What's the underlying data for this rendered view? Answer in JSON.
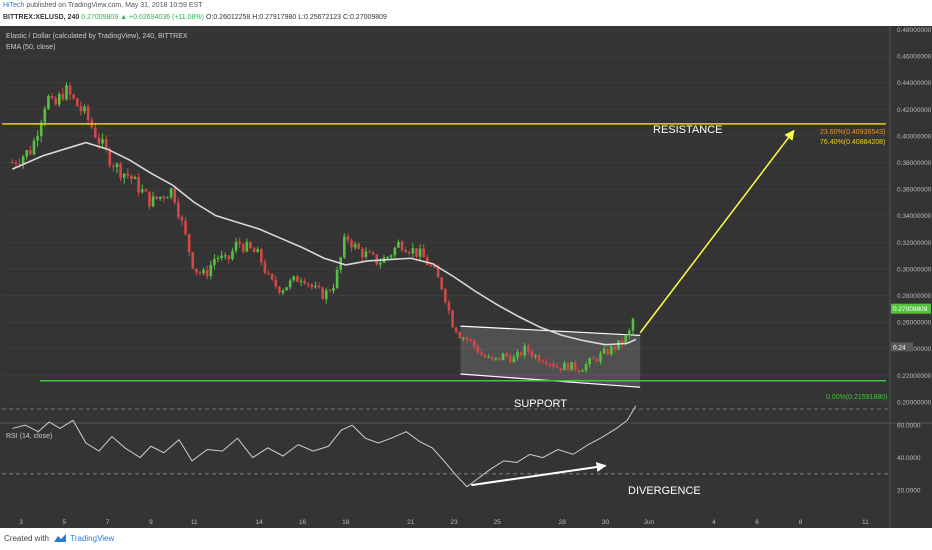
{
  "header": {
    "author": "HiTech",
    "published": "published on TradingView.com, May 31, 2018 10:59 EST",
    "symbol": "BITTREX:XELUSD, 240",
    "change": "0.27009809 ▲ +0.02694036 (+11.08%)",
    "ohlc": "O:0.26012258 H:0.27917980 L:0.25672123 C:0.27009809"
  },
  "legend": {
    "title": "Elastic / Dollar (calculated by TradingView), 240, BITTREX",
    "ema": "EMA (50, close)",
    "rsi": "RSI (14, close)"
  },
  "labels": {
    "resistance": "RESISTANCE",
    "support": "SUPPORT",
    "divergence": "DIVERGENCE",
    "fib_236": "23.60%(0.40936543)",
    "fib_764": "76.40%(0.40884208)",
    "fib_0": "0.00%(0.21591880)",
    "price_tag": "0.27009809",
    "ema_tag": "0.24"
  },
  "footer": {
    "created": "Created with",
    "brand": "TradingView"
  },
  "colors": {
    "background": "#343434",
    "candle_up": "#56c13f",
    "candle_down": "#d24848",
    "ema": "#d9d9d9",
    "resistance": "#e8d21a",
    "support": "#3fc83a",
    "arrow": "#ffff44",
    "rsi": "#cfcfcf"
  },
  "chart_data": [
    {
      "type": "candlestick",
      "title": "Elastic / Dollar (calculated by TradingView), 240, BITTREX",
      "ylim": [
        0.19,
        0.49
      ],
      "yticks": [
        "0.48000000",
        "0.46000000",
        "0.44000000",
        "0.42000000",
        "0.40000000",
        "0.38000000",
        "0.36000000",
        "0.34000000",
        "0.32000000",
        "0.30000000",
        "0.28000000",
        "0.26000000",
        "0.24000000",
        "0.22000000",
        "0.20000000"
      ],
      "xticks": [
        "3",
        "5",
        "7",
        "9",
        "11",
        "14",
        "16",
        "18",
        "21",
        "23",
        "25",
        "28",
        "30",
        "Jun",
        "4",
        "6",
        "8",
        "11"
      ],
      "close_path": [
        {
          "d": 2.6,
          "v": 0.38
        },
        {
          "d": 3.5,
          "v": 0.39
        },
        {
          "d": 4.2,
          "v": 0.43
        },
        {
          "d": 4.5,
          "v": 0.42
        },
        {
          "d": 5.0,
          "v": 0.435
        },
        {
          "d": 5.5,
          "v": 0.425
        },
        {
          "d": 6.0,
          "v": 0.415
        },
        {
          "d": 6.5,
          "v": 0.4
        },
        {
          "d": 7.0,
          "v": 0.385
        },
        {
          "d": 7.5,
          "v": 0.375
        },
        {
          "d": 8.0,
          "v": 0.37
        },
        {
          "d": 8.5,
          "v": 0.36
        },
        {
          "d": 9.0,
          "v": 0.35
        },
        {
          "d": 9.5,
          "v": 0.355
        },
        {
          "d": 10.0,
          "v": 0.36
        },
        {
          "d": 10.5,
          "v": 0.33
        },
        {
          "d": 11.0,
          "v": 0.3
        },
        {
          "d": 11.5,
          "v": 0.295
        },
        {
          "d": 12.0,
          "v": 0.31
        },
        {
          "d": 12.5,
          "v": 0.305
        },
        {
          "d": 13.0,
          "v": 0.32
        },
        {
          "d": 13.5,
          "v": 0.315
        },
        {
          "d": 14.0,
          "v": 0.31
        },
        {
          "d": 14.5,
          "v": 0.29
        },
        {
          "d": 15.0,
          "v": 0.285
        },
        {
          "d": 15.5,
          "v": 0.29
        },
        {
          "d": 16.0,
          "v": 0.295
        },
        {
          "d": 16.5,
          "v": 0.285
        },
        {
          "d": 17.0,
          "v": 0.28
        },
        {
          "d": 17.5,
          "v": 0.29
        },
        {
          "d": 17.8,
          "v": 0.31
        },
        {
          "d": 18.0,
          "v": 0.325
        },
        {
          "d": 18.5,
          "v": 0.315
        },
        {
          "d": 19.0,
          "v": 0.31
        },
        {
          "d": 19.5,
          "v": 0.305
        },
        {
          "d": 20.0,
          "v": 0.31
        },
        {
          "d": 20.5,
          "v": 0.32
        },
        {
          "d": 21.0,
          "v": 0.315
        },
        {
          "d": 21.5,
          "v": 0.31
        },
        {
          "d": 22.0,
          "v": 0.3
        },
        {
          "d": 22.5,
          "v": 0.285
        },
        {
          "d": 22.9,
          "v": 0.26
        },
        {
          "d": 23.3,
          "v": 0.25
        },
        {
          "d": 23.8,
          "v": 0.245
        },
        {
          "d": 24.3,
          "v": 0.235
        },
        {
          "d": 24.8,
          "v": 0.23
        },
        {
          "d": 25.3,
          "v": 0.235
        },
        {
          "d": 25.8,
          "v": 0.232
        },
        {
          "d": 26.3,
          "v": 0.24
        },
        {
          "d": 26.8,
          "v": 0.234
        },
        {
          "d": 27.3,
          "v": 0.232
        },
        {
          "d": 27.8,
          "v": 0.226
        },
        {
          "d": 28.3,
          "v": 0.227
        },
        {
          "d": 28.8,
          "v": 0.225
        },
        {
          "d": 29.3,
          "v": 0.23
        },
        {
          "d": 29.8,
          "v": 0.235
        },
        {
          "d": 30.3,
          "v": 0.24
        },
        {
          "d": 30.8,
          "v": 0.245
        },
        {
          "d": 31.1,
          "v": 0.252
        },
        {
          "d": 31.4,
          "v": 0.27
        }
      ],
      "ema_50": [
        {
          "d": 2.6,
          "v": 0.375
        },
        {
          "d": 4.0,
          "v": 0.385
        },
        {
          "d": 5.0,
          "v": 0.39
        },
        {
          "d": 6.0,
          "v": 0.395
        },
        {
          "d": 7.0,
          "v": 0.39
        },
        {
          "d": 8.0,
          "v": 0.382
        },
        {
          "d": 9.0,
          "v": 0.372
        },
        {
          "d": 10.0,
          "v": 0.363
        },
        {
          "d": 11.0,
          "v": 0.35
        },
        {
          "d": 12.0,
          "v": 0.34
        },
        {
          "d": 13.0,
          "v": 0.335
        },
        {
          "d": 14.0,
          "v": 0.33
        },
        {
          "d": 15.0,
          "v": 0.323
        },
        {
          "d": 16.0,
          "v": 0.316
        },
        {
          "d": 17.0,
          "v": 0.308
        },
        {
          "d": 18.0,
          "v": 0.303
        },
        {
          "d": 19.0,
          "v": 0.306
        },
        {
          "d": 20.0,
          "v": 0.307
        },
        {
          "d": 21.0,
          "v": 0.308
        },
        {
          "d": 22.0,
          "v": 0.304
        },
        {
          "d": 23.0,
          "v": 0.294
        },
        {
          "d": 24.0,
          "v": 0.283
        },
        {
          "d": 25.0,
          "v": 0.273
        },
        {
          "d": 26.0,
          "v": 0.264
        },
        {
          "d": 27.0,
          "v": 0.256
        },
        {
          "d": 28.0,
          "v": 0.25
        },
        {
          "d": 29.0,
          "v": 0.246
        },
        {
          "d": 30.0,
          "v": 0.243
        },
        {
          "d": 31.0,
          "v": 0.244
        },
        {
          "d": 31.4,
          "v": 0.247
        }
      ],
      "resistance": 0.409,
      "support": 0.2159,
      "fib_levels": [
        {
          "level": "23.60%",
          "value": 0.40936543
        },
        {
          "level": "76.40%",
          "value": 0.40884208
        },
        {
          "level": "0.00%",
          "value": 0.2159188
        }
      ],
      "channel": {
        "upper": [
          {
            "d": 23.3,
            "v": 0.257
          },
          {
            "d": 31.6,
            "v": 0.25
          }
        ],
        "lower": [
          {
            "d": 23.3,
            "v": 0.221
          },
          {
            "d": 31.6,
            "v": 0.211
          }
        ]
      },
      "projection": {
        "from": {
          "d": 31.6,
          "v": 0.252
        },
        "to": {
          "d": 38.7,
          "v": 0.404
        }
      },
      "last_price": 0.27009809
    },
    {
      "type": "line",
      "title": "RSI (14, close)",
      "ylim": [
        20,
        75
      ],
      "yticks": [
        "60.0000",
        "40.0000",
        "20.0000"
      ],
      "levels": [
        70,
        30
      ],
      "series": [
        {
          "name": "RSI (14, close)",
          "points": [
            {
              "d": 2.6,
              "v": 58
            },
            {
              "d": 3.2,
              "v": 60
            },
            {
              "d": 3.8,
              "v": 56
            },
            {
              "d": 4.3,
              "v": 62
            },
            {
              "d": 4.8,
              "v": 58
            },
            {
              "d": 5.4,
              "v": 63
            },
            {
              "d": 6.0,
              "v": 49
            },
            {
              "d": 6.6,
              "v": 44
            },
            {
              "d": 7.2,
              "v": 53
            },
            {
              "d": 7.8,
              "v": 46
            },
            {
              "d": 8.5,
              "v": 40
            },
            {
              "d": 9.0,
              "v": 47
            },
            {
              "d": 9.6,
              "v": 43
            },
            {
              "d": 10.3,
              "v": 51
            },
            {
              "d": 10.9,
              "v": 38
            },
            {
              "d": 11.6,
              "v": 45
            },
            {
              "d": 12.3,
              "v": 44
            },
            {
              "d": 13.0,
              "v": 52
            },
            {
              "d": 13.7,
              "v": 40
            },
            {
              "d": 14.4,
              "v": 46
            },
            {
              "d": 15.1,
              "v": 41
            },
            {
              "d": 15.8,
              "v": 48
            },
            {
              "d": 16.5,
              "v": 44
            },
            {
              "d": 17.2,
              "v": 47
            },
            {
              "d": 17.8,
              "v": 57
            },
            {
              "d": 18.3,
              "v": 60
            },
            {
              "d": 18.9,
              "v": 52
            },
            {
              "d": 19.5,
              "v": 49
            },
            {
              "d": 20.1,
              "v": 52
            },
            {
              "d": 20.8,
              "v": 56
            },
            {
              "d": 21.4,
              "v": 50
            },
            {
              "d": 22.0,
              "v": 46
            },
            {
              "d": 22.6,
              "v": 37
            },
            {
              "d": 23.1,
              "v": 29
            },
            {
              "d": 23.6,
              "v": 22
            },
            {
              "d": 24.1,
              "v": 27
            },
            {
              "d": 24.7,
              "v": 33
            },
            {
              "d": 25.3,
              "v": 38
            },
            {
              "d": 25.9,
              "v": 37
            },
            {
              "d": 26.5,
              "v": 42
            },
            {
              "d": 27.1,
              "v": 40
            },
            {
              "d": 27.8,
              "v": 45
            },
            {
              "d": 28.5,
              "v": 42
            },
            {
              "d": 29.2,
              "v": 48
            },
            {
              "d": 29.9,
              "v": 53
            },
            {
              "d": 30.5,
              "v": 58
            },
            {
              "d": 31.0,
              "v": 63
            },
            {
              "d": 31.4,
              "v": 72
            }
          ]
        }
      ],
      "divergence": {
        "from": {
          "d": 23.8,
          "v": 23
        },
        "to": {
          "d": 30.0,
          "v": 35
        }
      }
    }
  ]
}
